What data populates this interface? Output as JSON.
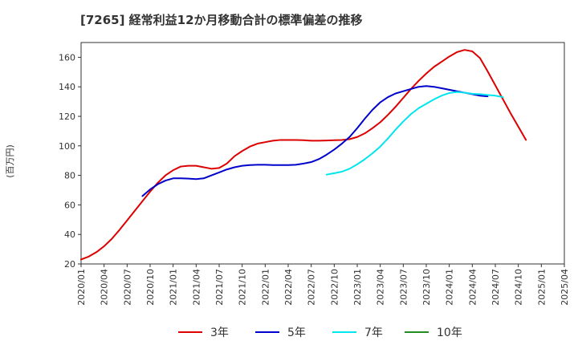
{
  "chart_data": {
    "type": "line",
    "title": "[7265]  経常利益12か月移動合計の標準偏差の推移",
    "ylabel": "(百万円)",
    "xlabel": "",
    "ylim": [
      20,
      170
    ],
    "yticks": [
      20,
      40,
      60,
      80,
      100,
      120,
      140,
      160
    ],
    "x_start": "2020-01",
    "x_end": "2025-04",
    "xticks": [
      "2020/01",
      "2020/04",
      "2020/07",
      "2020/10",
      "2021/01",
      "2021/04",
      "2021/07",
      "2021/10",
      "2022/01",
      "2022/04",
      "2022/07",
      "2022/10",
      "2023/01",
      "2023/04",
      "2023/07",
      "2023/10",
      "2024/01",
      "2024/04",
      "2024/07",
      "2024/10",
      "2025/01",
      "2025/04"
    ],
    "grid": true,
    "legend_position": "bottom",
    "series": [
      {
        "name": "3年",
        "color": "#dd0000",
        "start": "2020-01",
        "values": [
          23,
          25,
          28,
          32,
          37,
          43,
          49.5,
          56,
          62.5,
          69,
          75,
          80,
          83.5,
          86,
          86.5,
          86.5,
          85.5,
          84.5,
          85,
          88,
          93,
          96.5,
          99.5,
          101.5,
          102.5,
          103.5,
          104,
          104,
          104,
          103.8,
          103.5,
          103.5,
          103.6,
          103.8,
          104,
          104.5,
          106,
          108.5,
          112,
          116,
          121,
          126.5,
          132.5,
          138.5,
          144,
          149,
          153.5,
          157,
          160.5,
          163.5,
          165,
          164,
          159.5,
          150.5,
          141,
          131.5,
          122,
          113,
          104
        ]
      },
      {
        "name": "5年",
        "color": "#0000cc",
        "start": "2020-09",
        "values": [
          66,
          70.5,
          74,
          76.5,
          78,
          78,
          77.8,
          77.5,
          78,
          80,
          82,
          84,
          85.5,
          86.5,
          87,
          87.2,
          87.2,
          87,
          87,
          87,
          87.2,
          88,
          89,
          91,
          94,
          97.5,
          101.5,
          106,
          112,
          118.5,
          124.5,
          129.5,
          133,
          135.5,
          137,
          138.5,
          140,
          140.5,
          140,
          139,
          138,
          137,
          136,
          135,
          134,
          133.5
        ]
      },
      {
        "name": "7年",
        "color": "#00e5ee",
        "start": "2022-09",
        "values": [
          80.5,
          81.5,
          82.5,
          84.5,
          87.5,
          91,
          95,
          99.5,
          105,
          111,
          116.5,
          121.5,
          125.5,
          128.5,
          131.5,
          134,
          135.8,
          136.5,
          136,
          135.3,
          135,
          134.5,
          134,
          133
        ]
      },
      {
        "name": "10年",
        "color": "#228b22",
        "start": "2025-01",
        "values": []
      }
    ]
  }
}
